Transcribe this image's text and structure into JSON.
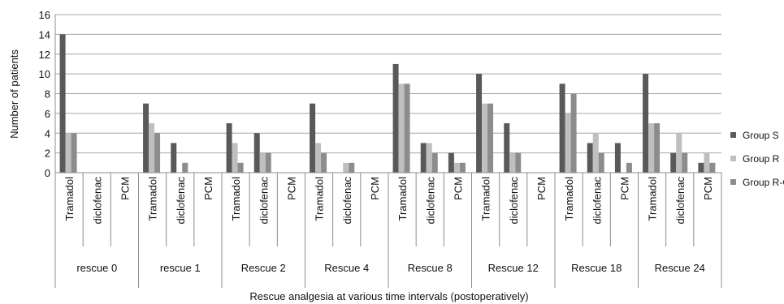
{
  "chart_data": {
    "type": "bar",
    "ylabel": "Number of patients",
    "xlabel": "Rescue analgesia at various time intervals (postoperatively)",
    "ylim": [
      0,
      16
    ],
    "yticks": [
      "0",
      "2",
      "4",
      "6",
      "8",
      "10",
      "12",
      "14",
      "16"
    ],
    "grid": true,
    "legend_position": "right",
    "groups": [
      "rescue 0",
      "rescue 1",
      "Rescue 2",
      "Rescue 4",
      "Rescue 8",
      "Rescue 12",
      "Rescue 18",
      "Rescue 24"
    ],
    "subcategories": [
      "Tramadol",
      "diclofenac",
      "PCM"
    ],
    "series": [
      {
        "name": "Group S",
        "color": "#595959",
        "values": [
          14,
          0,
          0,
          7,
          3,
          0,
          5,
          4,
          0,
          7,
          0,
          0,
          11,
          3,
          2,
          10,
          5,
          0,
          9,
          3,
          3,
          10,
          2,
          1
        ]
      },
      {
        "name": "Group R",
        "color": "#bfbfbf",
        "values": [
          4,
          0,
          0,
          5,
          0,
          0,
          3,
          2,
          0,
          3,
          1,
          0,
          9,
          3,
          1,
          7,
          2,
          0,
          6,
          4,
          0,
          5,
          4,
          2
        ]
      },
      {
        "name": "Group R-C",
        "color": "#8c8c8c",
        "values": [
          4,
          0,
          0,
          4,
          1,
          0,
          1,
          2,
          0,
          2,
          1,
          0,
          9,
          2,
          1,
          7,
          2,
          0,
          8,
          2,
          1,
          5,
          2,
          1
        ]
      }
    ]
  }
}
